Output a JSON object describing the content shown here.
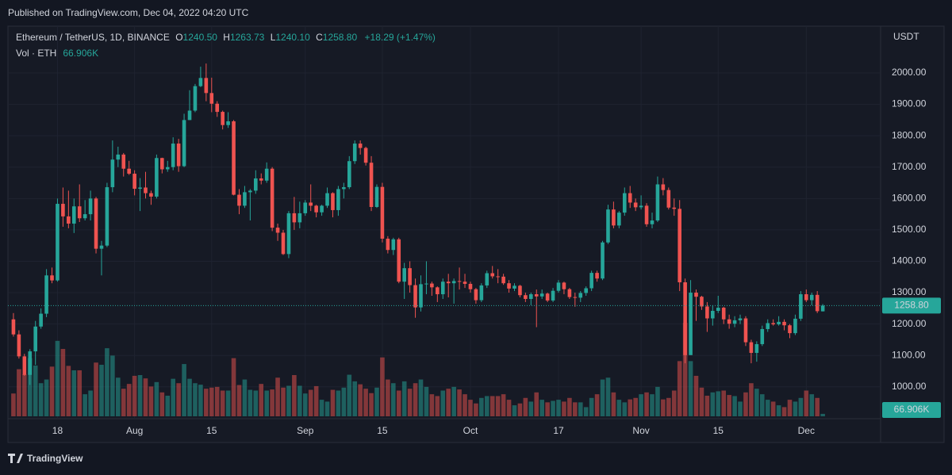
{
  "chart_data": {
    "type": "candlestick",
    "published": "Published on TradingView.com, Dec 04, 2022 04:20 UTC",
    "title": "Ethereum / TetherUS, 1D, BINANCE",
    "legend": {
      "o_label": "O",
      "o": "1240.50",
      "h_label": "H",
      "h": "1263.73",
      "l_label": "L",
      "l": "1240.10",
      "c_label": "C",
      "c": "1258.80",
      "change": "+18.29 (+1.47%)"
    },
    "volume_title": "Vol · ETH",
    "volume_value": "66.906K",
    "y_axis_label": "USDT",
    "last_price_label": "1258.80",
    "brand": "TradingView",
    "up_color": "#26a69a",
    "down_color": "#ef5350",
    "grid": true,
    "xlim": [
      -1,
      157.5
    ],
    "xticks": [
      {
        "value": 8,
        "label": "18"
      },
      {
        "value": 22,
        "label": "Aug"
      },
      {
        "value": 36,
        "label": "15"
      },
      {
        "value": 53,
        "label": "Sep"
      },
      {
        "value": 67,
        "label": "15"
      },
      {
        "value": 83,
        "label": "Oct"
      },
      {
        "value": 99,
        "label": "17"
      },
      {
        "value": 114,
        "label": "Nov"
      },
      {
        "value": 128,
        "label": "15"
      },
      {
        "value": 144,
        "label": "Dec"
      }
    ],
    "ylim": [
      906,
      2144
    ],
    "yticks": [
      {
        "value": 1000,
        "label": "1000.00"
      },
      {
        "value": 1100,
        "label": "1100.00"
      },
      {
        "value": 1200,
        "label": "1200.00"
      },
      {
        "value": 1300,
        "label": "1300.00"
      },
      {
        "value": 1400,
        "label": "1400.00"
      },
      {
        "value": 1500,
        "label": "1500.00"
      },
      {
        "value": 1600,
        "label": "1600.00"
      },
      {
        "value": 1700,
        "label": "1700.00"
      },
      {
        "value": 1800,
        "label": "1800.00"
      },
      {
        "value": 1900,
        "label": "1900.00"
      },
      {
        "value": 2000,
        "label": "2000.00"
      }
    ],
    "volume_ylim": [
      0,
      2800000
    ],
    "open": [
      1215,
      1167,
      1097,
      1038,
      1113,
      1192,
      1233,
      1355,
      1339,
      1583,
      1543,
      1520,
      1575,
      1537,
      1550,
      1600,
      1440,
      1450,
      1636,
      1724,
      1740,
      1695,
      1679,
      1631,
      1635,
      1617,
      1606,
      1729,
      1693,
      1700,
      1775,
      1703,
      1850,
      1880,
      1958,
      1984,
      1936,
      1902,
      1876,
      1834,
      1846,
      1612,
      1577,
      1620,
      1625,
      1664,
      1657,
      1695,
      1507,
      1491,
      1423,
      1553,
      1524,
      1553,
      1587,
      1577,
      1556,
      1577,
      1617,
      1563,
      1630,
      1636,
      1719,
      1775,
      1761,
      1714,
      1573,
      1637,
      1472,
      1436,
      1470,
      1335,
      1378,
      1324,
      1253,
      1327,
      1329,
      1317,
      1295,
      1335,
      1330,
      1337,
      1335,
      1328,
      1311,
      1276,
      1323,
      1362,
      1352,
      1351,
      1330,
      1313,
      1322,
      1292,
      1280,
      1295,
      1288,
      1297,
      1275,
      1306,
      1332,
      1311,
      1286,
      1284,
      1299,
      1314,
      1363,
      1345,
      1460,
      1565,
      1514,
      1555,
      1617,
      1587,
      1572,
      1577,
      1518,
      1530,
      1645,
      1627,
      1571,
      1567,
      1333,
      1101,
      1300,
      1287,
      1256,
      1218,
      1242,
      1252,
      1215,
      1201,
      1212,
      1218,
      1142,
      1108,
      1136,
      1184,
      1203,
      1199,
      1207,
      1196,
      1171,
      1217,
      1295,
      1276,
      1293,
      1240.5
    ],
    "high": [
      1235,
      1180,
      1105,
      1120,
      1210,
      1250,
      1375,
      1380,
      1600,
      1635,
      1625,
      1600,
      1645,
      1595,
      1625,
      1605,
      1465,
      1650,
      1785,
      1765,
      1745,
      1720,
      1690,
      1665,
      1685,
      1625,
      1740,
      1730,
      1720,
      1795,
      1790,
      1870,
      1945,
      1965,
      2020,
      2030,
      1985,
      1910,
      1880,
      1875,
      1850,
      1630,
      1640,
      1630,
      1690,
      1680,
      1715,
      1700,
      1520,
      1500,
      1560,
      1605,
      1590,
      1595,
      1645,
      1580,
      1580,
      1635,
      1620,
      1640,
      1650,
      1735,
      1785,
      1785,
      1765,
      1735,
      1645,
      1650,
      1480,
      1475,
      1475,
      1395,
      1400,
      1345,
      1355,
      1400,
      1335,
      1320,
      1345,
      1360,
      1345,
      1380,
      1360,
      1335,
      1315,
      1330,
      1370,
      1385,
      1375,
      1360,
      1340,
      1330,
      1325,
      1300,
      1300,
      1310,
      1310,
      1300,
      1315,
      1340,
      1335,
      1315,
      1300,
      1305,
      1320,
      1370,
      1370,
      1465,
      1580,
      1590,
      1560,
      1635,
      1640,
      1600,
      1610,
      1585,
      1555,
      1670,
      1665,
      1635,
      1600,
      1595,
      1345,
      1340,
      1310,
      1290,
      1270,
      1260,
      1290,
      1255,
      1230,
      1225,
      1230,
      1225,
      1150,
      1145,
      1195,
      1215,
      1215,
      1225,
      1215,
      1200,
      1230,
      1305,
      1310,
      1300,
      1305,
      1263.73
    ],
    "low": [
      1160,
      1090,
      1035,
      1006,
      1070,
      1185,
      1222,
      1330,
      1335,
      1510,
      1505,
      1490,
      1525,
      1530,
      1530,
      1425,
      1355,
      1445,
      1620,
      1700,
      1670,
      1675,
      1610,
      1560,
      1600,
      1580,
      1600,
      1680,
      1685,
      1690,
      1685,
      1700,
      1850,
      1875,
      1955,
      1910,
      1875,
      1860,
      1820,
      1825,
      1610,
      1550,
      1570,
      1530,
      1615,
      1645,
      1650,
      1496,
      1465,
      1420,
      1410,
      1500,
      1505,
      1545,
      1560,
      1540,
      1545,
      1570,
      1540,
      1545,
      1600,
      1630,
      1710,
      1740,
      1705,
      1560,
      1570,
      1460,
      1425,
      1420,
      1330,
      1280,
      1300,
      1220,
      1240,
      1295,
      1290,
      1270,
      1280,
      1285,
      1265,
      1310,
      1315,
      1300,
      1265,
      1270,
      1315,
      1345,
      1330,
      1325,
      1300,
      1305,
      1285,
      1270,
      1260,
      1190,
      1280,
      1270,
      1270,
      1300,
      1295,
      1280,
      1255,
      1270,
      1290,
      1305,
      1335,
      1340,
      1455,
      1505,
      1505,
      1545,
      1570,
      1560,
      1565,
      1510,
      1505,
      1525,
      1610,
      1565,
      1545,
      1305,
      1075,
      1105,
      1210,
      1245,
      1175,
      1195,
      1235,
      1200,
      1185,
      1190,
      1200,
      1130,
      1075,
      1080,
      1130,
      1175,
      1195,
      1195,
      1180,
      1155,
      1165,
      1210,
      1270,
      1260,
      1235,
      1240.1
    ],
    "close": [
      1167,
      1097,
      1038,
      1113,
      1192,
      1233,
      1355,
      1339,
      1583,
      1543,
      1520,
      1575,
      1537,
      1550,
      1600,
      1440,
      1450,
      1636,
      1724,
      1740,
      1695,
      1679,
      1631,
      1635,
      1617,
      1606,
      1729,
      1693,
      1700,
      1775,
      1703,
      1850,
      1880,
      1958,
      1984,
      1936,
      1902,
      1876,
      1834,
      1846,
      1612,
      1577,
      1620,
      1625,
      1664,
      1657,
      1695,
      1507,
      1491,
      1423,
      1553,
      1524,
      1553,
      1587,
      1577,
      1556,
      1577,
      1617,
      1563,
      1630,
      1636,
      1719,
      1775,
      1761,
      1714,
      1573,
      1637,
      1472,
      1436,
      1470,
      1335,
      1378,
      1324,
      1253,
      1327,
      1329,
      1317,
      1295,
      1335,
      1330,
      1337,
      1335,
      1328,
      1311,
      1276,
      1323,
      1362,
      1352,
      1351,
      1330,
      1313,
      1322,
      1292,
      1280,
      1295,
      1288,
      1297,
      1275,
      1306,
      1332,
      1311,
      1286,
      1284,
      1299,
      1314,
      1363,
      1345,
      1460,
      1565,
      1514,
      1555,
      1617,
      1587,
      1572,
      1577,
      1518,
      1530,
      1645,
      1627,
      1571,
      1567,
      1333,
      1101,
      1300,
      1287,
      1256,
      1218,
      1242,
      1252,
      1215,
      1201,
      1212,
      1218,
      1142,
      1108,
      1136,
      1184,
      1203,
      1199,
      1207,
      1196,
      1171,
      1217,
      1295,
      1276,
      1293,
      1241,
      1258.8
    ],
    "volume": [
      620000,
      1280000,
      1140000,
      1580000,
      1380000,
      900000,
      1000000,
      1350000,
      2050000,
      1830000,
      1370000,
      1250000,
      1250000,
      600000,
      700000,
      1460000,
      1400000,
      1850000,
      1650000,
      1050000,
      750000,
      880000,
      1100000,
      1120000,
      1030000,
      810000,
      930000,
      650000,
      560000,
      1020000,
      900000,
      1420000,
      1020000,
      900000,
      860000,
      750000,
      780000,
      800000,
      700000,
      700000,
      1580000,
      850000,
      1000000,
      720000,
      700000,
      880000,
      700000,
      730000,
      1050000,
      780000,
      830000,
      1120000,
      830000,
      620000,
      720000,
      820000,
      450000,
      400000,
      720000,
      700000,
      780000,
      1130000,
      950000,
      870000,
      750000,
      630000,
      780000,
      1600000,
      1000000,
      900000,
      700000,
      950000,
      750000,
      900000,
      1000000,
      800000,
      600000,
      550000,
      700000,
      750000,
      800000,
      730000,
      600000,
      450000,
      350000,
      500000,
      550000,
      550000,
      550000,
      600000,
      450000,
      300000,
      350000,
      500000,
      400000,
      650000,
      450000,
      380000,
      420000,
      450000,
      400000,
      500000,
      380000,
      380000,
      250000,
      500000,
      600000,
      1000000,
      1050000,
      650000,
      450000,
      380000,
      460000,
      500000,
      600000,
      650000,
      600000,
      800000,
      460000,
      500000,
      700000,
      1500000,
      2540000,
      1500000,
      1100000,
      780000,
      560000,
      650000,
      680000,
      700000,
      580000,
      550000,
      400000,
      650000,
      900000,
      750000,
      600000,
      450000,
      400000,
      300000,
      250000,
      450000,
      400000,
      500000,
      700000,
      600000,
      500000,
      66906
    ]
  }
}
